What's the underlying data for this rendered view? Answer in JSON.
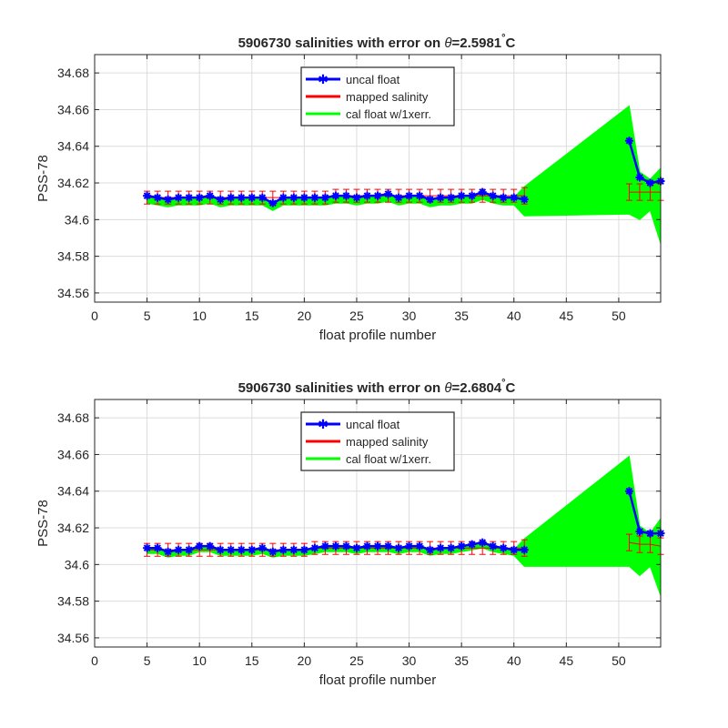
{
  "colors": {
    "uncal": "#0000ff",
    "mapped": "#ff0000",
    "cal_band": "#00ff00",
    "grid": "#dcdcdc",
    "axes": "#262626",
    "background": "#ffffff"
  },
  "chart_data": [
    {
      "type": "line",
      "title_prefix": "5906730 salinities with error on ",
      "title_theta": "θ",
      "title_value": "=2.5981",
      "title_degree": "°",
      "title_unit": "C",
      "xlabel": "float profile number",
      "ylabel": "PSS-78",
      "xlim": [
        0,
        54
      ],
      "ylim": [
        34.555,
        34.69
      ],
      "xticks": [
        0,
        5,
        10,
        15,
        20,
        25,
        30,
        35,
        40,
        45,
        50
      ],
      "yticks": [
        34.56,
        34.58,
        34.6,
        34.62,
        34.64,
        34.66,
        34.68
      ],
      "ytick_labels": [
        "34.56",
        "34.58",
        "34.6",
        "34.62",
        "34.64",
        "34.66",
        "34.68"
      ],
      "grid": true,
      "legend_position": "top-center",
      "legend": [
        "uncal float",
        "mapped salinity",
        "cal float w/1xerr."
      ],
      "x": [
        5,
        6,
        7,
        8,
        9,
        10,
        11,
        12,
        13,
        14,
        15,
        16,
        17,
        18,
        19,
        20,
        21,
        22,
        23,
        24,
        25,
        26,
        27,
        28,
        29,
        30,
        31,
        32,
        33,
        34,
        35,
        36,
        37,
        38,
        39,
        40,
        41,
        51,
        52,
        53,
        54
      ],
      "series": [
        {
          "name": "uncal float",
          "values": [
            34.613,
            34.612,
            34.611,
            34.612,
            34.612,
            34.612,
            34.613,
            34.611,
            34.612,
            34.612,
            34.612,
            34.612,
            34.609,
            34.612,
            34.612,
            34.612,
            34.612,
            34.612,
            34.613,
            34.613,
            34.612,
            34.613,
            34.613,
            34.614,
            34.612,
            34.613,
            34.613,
            34.611,
            34.612,
            34.612,
            34.613,
            34.613,
            34.615,
            34.613,
            34.612,
            34.612,
            34.611,
            34.643,
            34.623,
            34.62,
            34.621
          ]
        },
        {
          "name": "mapped salinity",
          "values": [
            34.612,
            34.612,
            34.612,
            34.612,
            34.612,
            34.612,
            34.612,
            34.612,
            34.612,
            34.612,
            34.612,
            34.612,
            34.612,
            34.612,
            34.612,
            34.612,
            34.612,
            34.612,
            34.613,
            34.613,
            34.613,
            34.613,
            34.613,
            34.613,
            34.613,
            34.613,
            34.613,
            34.613,
            34.613,
            34.613,
            34.613,
            34.613,
            34.613,
            34.613,
            34.613,
            34.613,
            34.613,
            34.615,
            34.615,
            34.615,
            34.615
          ],
          "errors": [
            0.0035,
            0.0035,
            0.0035,
            0.0035,
            0.0035,
            0.0035,
            0.0035,
            0.0035,
            0.0035,
            0.0035,
            0.0035,
            0.0035,
            0.0035,
            0.0035,
            0.0035,
            0.0035,
            0.0035,
            0.0035,
            0.0035,
            0.0035,
            0.0035,
            0.0035,
            0.0035,
            0.0035,
            0.0035,
            0.0035,
            0.0035,
            0.0035,
            0.0035,
            0.0035,
            0.0035,
            0.0035,
            0.0035,
            0.0035,
            0.0035,
            0.0035,
            0.0045,
            0.0045,
            0.0045,
            0.0045,
            0.0045
          ]
        },
        {
          "name": "cal float w/1xerr.",
          "upper": [
            34.613,
            34.612,
            34.611,
            34.612,
            34.612,
            34.612,
            34.613,
            34.611,
            34.612,
            34.612,
            34.612,
            34.612,
            34.609,
            34.612,
            34.612,
            34.612,
            34.612,
            34.612,
            34.613,
            34.613,
            34.612,
            34.613,
            34.613,
            34.614,
            34.612,
            34.613,
            34.613,
            34.611,
            34.612,
            34.612,
            34.613,
            34.613,
            34.615,
            34.613,
            34.612,
            34.612,
            34.618,
            34.662,
            34.626,
            34.622,
            34.628
          ],
          "lower": [
            34.609,
            34.608,
            34.607,
            34.608,
            34.608,
            34.608,
            34.609,
            34.607,
            34.608,
            34.608,
            34.608,
            34.608,
            34.605,
            34.608,
            34.608,
            34.608,
            34.608,
            34.608,
            34.609,
            34.609,
            34.608,
            34.609,
            34.609,
            34.61,
            34.608,
            34.609,
            34.609,
            34.607,
            34.608,
            34.608,
            34.609,
            34.609,
            34.611,
            34.609,
            34.608,
            34.608,
            34.602,
            34.603,
            34.6,
            34.605,
            34.587
          ]
        }
      ]
    },
    {
      "type": "line",
      "title_prefix": "5906730 salinities with error on ",
      "title_theta": "θ",
      "title_value": "=2.6804",
      "title_degree": "°",
      "title_unit": "C",
      "xlabel": "float profile number",
      "ylabel": "PSS-78",
      "xlim": [
        0,
        54
      ],
      "ylim": [
        34.555,
        34.69
      ],
      "xticks": [
        0,
        5,
        10,
        15,
        20,
        25,
        30,
        35,
        40,
        45,
        50
      ],
      "yticks": [
        34.56,
        34.58,
        34.6,
        34.62,
        34.64,
        34.66,
        34.68
      ],
      "ytick_labels": [
        "34.56",
        "34.58",
        "34.6",
        "34.62",
        "34.64",
        "34.66",
        "34.68"
      ],
      "grid": true,
      "legend_position": "top-center",
      "legend": [
        "uncal float",
        "mapped salinity",
        "cal float w/1xerr."
      ],
      "x": [
        5,
        6,
        7,
        8,
        9,
        10,
        11,
        12,
        13,
        14,
        15,
        16,
        17,
        18,
        19,
        20,
        21,
        22,
        23,
        24,
        25,
        26,
        27,
        28,
        29,
        30,
        31,
        32,
        33,
        34,
        35,
        36,
        37,
        38,
        39,
        40,
        41,
        51,
        52,
        53,
        54
      ],
      "series": [
        {
          "name": "uncal float",
          "values": [
            34.609,
            34.609,
            34.607,
            34.608,
            34.608,
            34.61,
            34.61,
            34.608,
            34.608,
            34.608,
            34.608,
            34.609,
            34.607,
            34.608,
            34.608,
            34.608,
            34.609,
            34.61,
            34.61,
            34.61,
            34.609,
            34.61,
            34.61,
            34.61,
            34.609,
            34.61,
            34.61,
            34.608,
            34.609,
            34.609,
            34.61,
            34.611,
            34.612,
            34.61,
            34.609,
            34.608,
            34.608,
            34.64,
            34.618,
            34.617,
            34.617
          ]
        },
        {
          "name": "mapped salinity",
          "values": [
            34.608,
            34.608,
            34.608,
            34.608,
            34.608,
            34.608,
            34.608,
            34.608,
            34.608,
            34.608,
            34.608,
            34.608,
            34.608,
            34.608,
            34.608,
            34.608,
            34.609,
            34.609,
            34.609,
            34.609,
            34.609,
            34.609,
            34.609,
            34.609,
            34.609,
            34.609,
            34.609,
            34.609,
            34.609,
            34.609,
            34.609,
            34.609,
            34.609,
            34.609,
            34.609,
            34.609,
            34.609,
            34.612,
            34.611,
            34.611,
            34.61
          ],
          "errors": [
            0.0035,
            0.0035,
            0.0035,
            0.0035,
            0.0035,
            0.0035,
            0.0035,
            0.0035,
            0.0035,
            0.0035,
            0.0035,
            0.0035,
            0.0035,
            0.0035,
            0.0035,
            0.0035,
            0.0035,
            0.0035,
            0.0035,
            0.0035,
            0.0035,
            0.0035,
            0.0035,
            0.0035,
            0.0035,
            0.0035,
            0.0035,
            0.0035,
            0.0035,
            0.0035,
            0.0035,
            0.0035,
            0.0035,
            0.0035,
            0.0035,
            0.0035,
            0.0045,
            0.0045,
            0.0045,
            0.0045,
            0.0045
          ]
        },
        {
          "name": "cal float w/1xerr.",
          "upper": [
            34.609,
            34.609,
            34.607,
            34.608,
            34.608,
            34.61,
            34.61,
            34.608,
            34.608,
            34.608,
            34.608,
            34.609,
            34.607,
            34.608,
            34.608,
            34.608,
            34.609,
            34.61,
            34.61,
            34.61,
            34.609,
            34.61,
            34.61,
            34.61,
            34.609,
            34.61,
            34.61,
            34.608,
            34.609,
            34.609,
            34.61,
            34.611,
            34.612,
            34.61,
            34.609,
            34.608,
            34.614,
            34.659,
            34.621,
            34.617,
            34.625
          ],
          "lower": [
            34.606,
            34.606,
            34.604,
            34.605,
            34.605,
            34.607,
            34.607,
            34.605,
            34.605,
            34.605,
            34.605,
            34.606,
            34.604,
            34.605,
            34.605,
            34.605,
            34.606,
            34.607,
            34.607,
            34.607,
            34.606,
            34.607,
            34.607,
            34.607,
            34.606,
            34.607,
            34.607,
            34.605,
            34.606,
            34.606,
            34.607,
            34.608,
            34.609,
            34.607,
            34.606,
            34.605,
            34.599,
            34.599,
            34.594,
            34.599,
            34.583
          ]
        }
      ]
    }
  ]
}
